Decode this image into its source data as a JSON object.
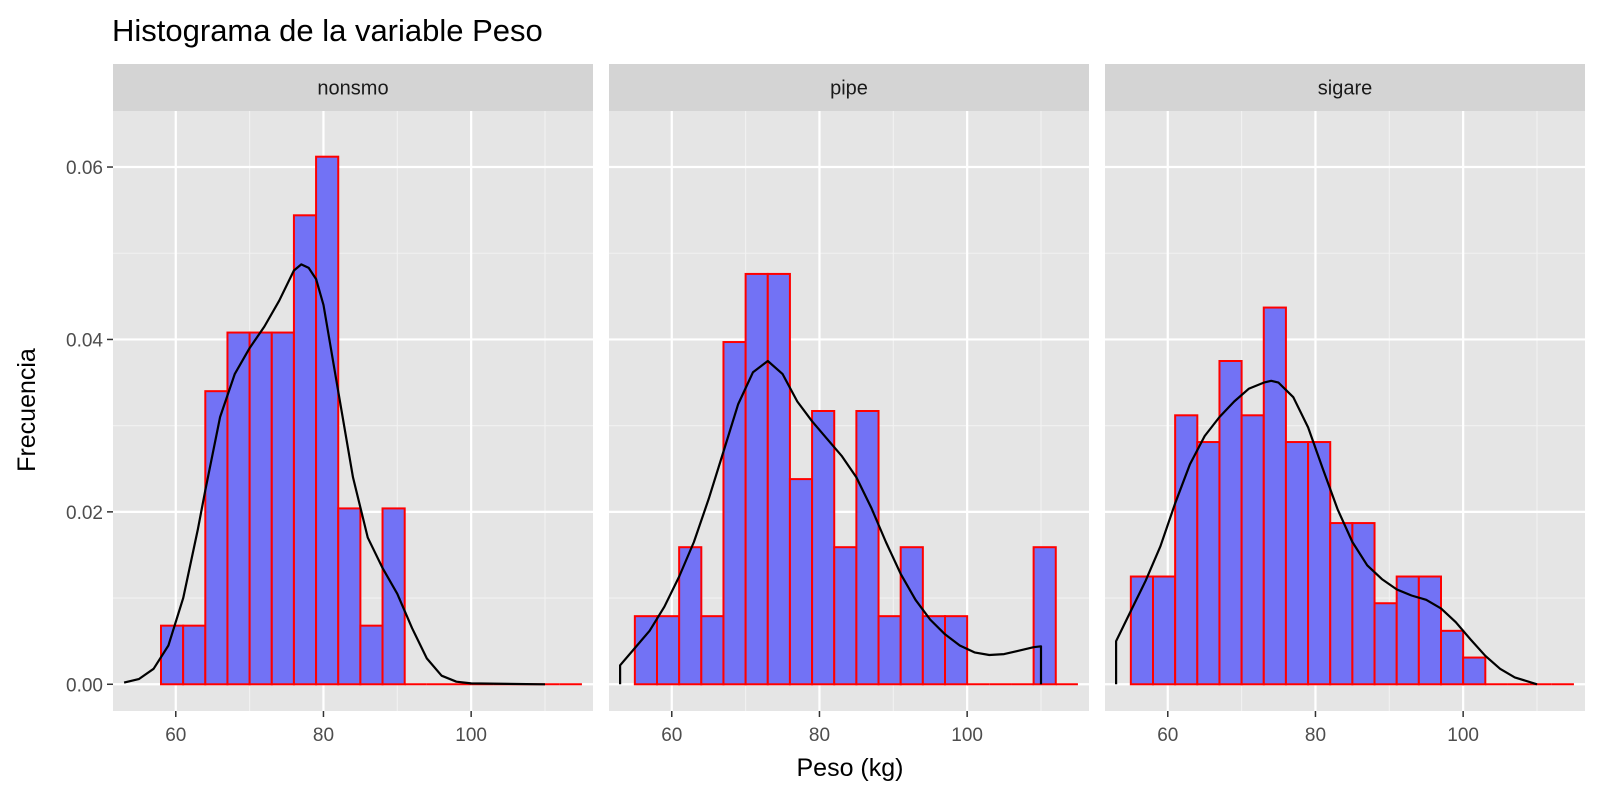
{
  "chart_data": {
    "type": "bar",
    "title": "Histograma de la variable Peso",
    "xlabel": "Peso (kg)",
    "ylabel": "Frecuencia",
    "xlim": [
      51.5,
      116.5
    ],
    "ylim": [
      -0.0031,
      0.0665
    ],
    "x_ticks": [
      60,
      80,
      100
    ],
    "y_ticks": [
      0.0,
      0.02,
      0.04,
      0.06
    ],
    "y_tick_labels": [
      "0.00",
      "0.02",
      "0.04",
      "0.06"
    ],
    "bin_width": 3,
    "grid": true,
    "legend": "none",
    "colors": {
      "bar_fill": "#7272f5",
      "bar_outline": "#ff0000",
      "density": "#000000",
      "panel_bg": "#e5e5e5",
      "strip_bg": "#d4d4d4"
    },
    "panels": [
      {
        "label": "nonsmo",
        "bin_starts": [
          58,
          61,
          64,
          67,
          70,
          73,
          76,
          79,
          82,
          85,
          88,
          91,
          94,
          97,
          100,
          103,
          106,
          109,
          112
        ],
        "values": [
          0.0068,
          0.0068,
          0.034,
          0.0408,
          0.0408,
          0.0408,
          0.0544,
          0.0612,
          0.0204,
          0.0068,
          0.0204,
          0,
          0,
          0,
          0,
          0,
          0,
          0,
          0
        ],
        "density_x": [
          53,
          55,
          57,
          59,
          61,
          63,
          64,
          66,
          68,
          70,
          72,
          74,
          76,
          77,
          78,
          79,
          80,
          82,
          84,
          86,
          88,
          90,
          92,
          94,
          96,
          98,
          100,
          110
        ],
        "density_y": [
          0.0002,
          0.0006,
          0.0018,
          0.0045,
          0.01,
          0.018,
          0.0225,
          0.031,
          0.036,
          0.039,
          0.0415,
          0.0445,
          0.048,
          0.0487,
          0.0483,
          0.047,
          0.044,
          0.034,
          0.024,
          0.017,
          0.0135,
          0.0105,
          0.0065,
          0.003,
          0.001,
          0.0003,
          0.0001,
          0
        ]
      },
      {
        "label": "pipe",
        "bin_starts": [
          55,
          58,
          61,
          64,
          67,
          70,
          73,
          76,
          79,
          82,
          85,
          88,
          91,
          94,
          97,
          100,
          103,
          106,
          109,
          112
        ],
        "values": [
          0.0079,
          0.0079,
          0.0159,
          0.0079,
          0.0397,
          0.0476,
          0.0476,
          0.0238,
          0.0317,
          0.0159,
          0.0317,
          0.0079,
          0.0159,
          0.0079,
          0.0079,
          0,
          0,
          0,
          0.0159,
          0
        ],
        "density_x": [
          53,
          53,
          55,
          57,
          59,
          61,
          63,
          65,
          67,
          69,
          71,
          73,
          75,
          77,
          79,
          81,
          83,
          85,
          87,
          89,
          91,
          93,
          95,
          97,
          99,
          101,
          103,
          105,
          107,
          109,
          110,
          110
        ],
        "density_y": [
          0,
          0.0022,
          0.0042,
          0.0062,
          0.009,
          0.0125,
          0.0165,
          0.0215,
          0.027,
          0.0325,
          0.0362,
          0.0375,
          0.036,
          0.0328,
          0.0305,
          0.0285,
          0.0265,
          0.024,
          0.0205,
          0.0165,
          0.0128,
          0.0098,
          0.0075,
          0.0058,
          0.0045,
          0.0037,
          0.0034,
          0.0035,
          0.0039,
          0.0043,
          0.0044,
          0
        ]
      },
      {
        "label": "sigare",
        "bin_starts": [
          55,
          58,
          61,
          64,
          67,
          70,
          73,
          76,
          79,
          82,
          85,
          88,
          91,
          94,
          97,
          100,
          103,
          106,
          109,
          112
        ],
        "values": [
          0.0125,
          0.0125,
          0.0312,
          0.0281,
          0.0375,
          0.0312,
          0.0437,
          0.0281,
          0.0281,
          0.0187,
          0.0187,
          0.0094,
          0.0125,
          0.0125,
          0.0062,
          0.0031,
          0,
          0,
          0,
          0
        ],
        "density_x": [
          53,
          53,
          55,
          57,
          59,
          61,
          63,
          65,
          67,
          69,
          71,
          73,
          74,
          75,
          77,
          79,
          81,
          83,
          85,
          87,
          89,
          91,
          93,
          95,
          97,
          99,
          101,
          103,
          105,
          107,
          110,
          110
        ],
        "density_y": [
          0,
          0.005,
          0.0085,
          0.012,
          0.016,
          0.021,
          0.0255,
          0.0288,
          0.031,
          0.0328,
          0.0343,
          0.035,
          0.0352,
          0.035,
          0.0333,
          0.0298,
          0.025,
          0.0203,
          0.0165,
          0.0138,
          0.0122,
          0.011,
          0.0103,
          0.0098,
          0.0088,
          0.0072,
          0.0052,
          0.0033,
          0.0018,
          0.0008,
          0,
          0
        ]
      }
    ]
  }
}
